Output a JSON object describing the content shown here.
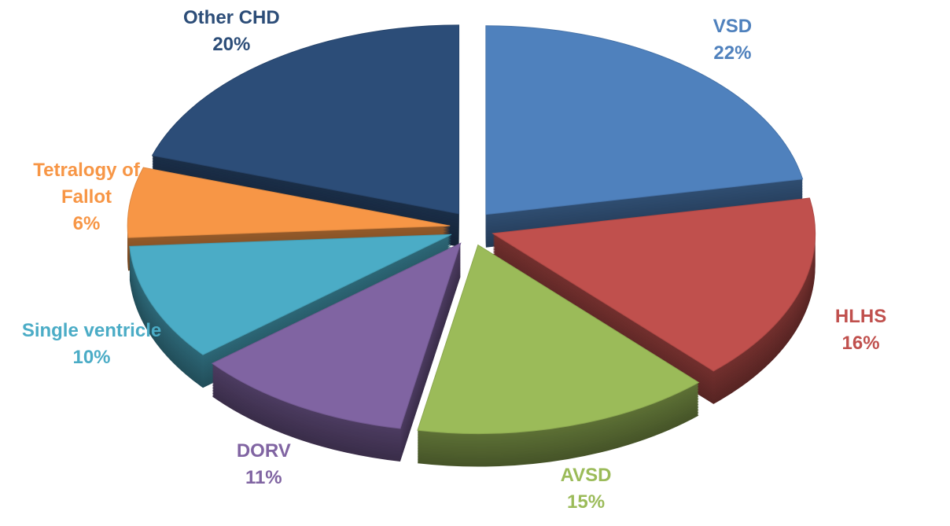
{
  "chart_data": {
    "type": "pie",
    "categories": [
      "VSD",
      "HLHS",
      "AVSD",
      "DORV",
      "Single ventricle",
      "Tetralogy of Fallot",
      "Other CHD"
    ],
    "values": [
      22,
      16,
      15,
      11,
      10,
      6,
      20
    ],
    "value_labels": [
      "22%",
      "16%",
      "15%",
      "11%",
      "10%",
      "6%",
      "20%"
    ],
    "colors": [
      "#4f81bd",
      "#c0504d",
      "#9bbb59",
      "#8064a2",
      "#4bacc6",
      "#f79646",
      "#2c4d78"
    ]
  }
}
